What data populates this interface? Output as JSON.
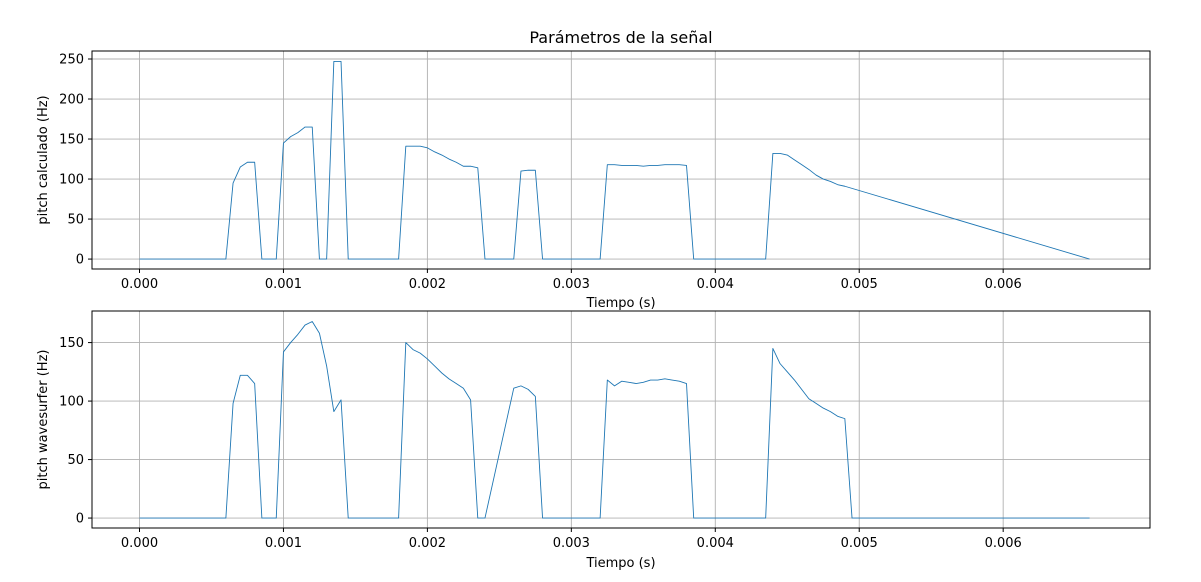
{
  "chart_data": [
    {
      "type": "line",
      "title": "Parámetros de la señal",
      "xlabel": "Tiempo (s)",
      "ylabel": "pitch calculado (Hz)",
      "xlim": [
        -0.00033,
        0.00702
      ],
      "ylim": [
        -12.4,
        260
      ],
      "xticks": [
        0.0,
        0.001,
        0.002,
        0.003,
        0.004,
        0.005,
        0.006
      ],
      "xtick_labels": [
        "0.000",
        "0.001",
        "0.002",
        "0.003",
        "0.004",
        "0.005",
        "0.006"
      ],
      "yticks": [
        0,
        50,
        100,
        150,
        200,
        250
      ],
      "ytick_labels": [
        "0",
        "50",
        "100",
        "150",
        "200",
        "250"
      ],
      "grid": true,
      "color": "#1f77b4",
      "series": [
        {
          "x": [
            0.0,
            0.0006,
            0.00065,
            0.0007,
            0.00075,
            0.0008,
            0.00085,
            0.00095,
            0.001,
            0.00105,
            0.0011,
            0.00115,
            0.0012,
            0.00125,
            0.0013,
            0.00135,
            0.0014,
            0.00145,
            0.0018,
            0.00185,
            0.0019,
            0.00195,
            0.002,
            0.00205,
            0.0021,
            0.00215,
            0.0022,
            0.00225,
            0.0023,
            0.00235,
            0.0024,
            0.00255,
            0.0026,
            0.00265,
            0.0027,
            0.00275,
            0.0028,
            0.00315,
            0.0032,
            0.00325,
            0.0033,
            0.00335,
            0.0034,
            0.00345,
            0.0035,
            0.00355,
            0.0036,
            0.00365,
            0.0037,
            0.00375,
            0.0038,
            0.00385,
            0.00435,
            0.0044,
            0.00445,
            0.0045,
            0.00455,
            0.0046,
            0.00465,
            0.0047,
            0.00475,
            0.0048,
            0.00485,
            0.0049,
            0.0066
          ],
          "y": [
            0,
            0,
            95,
            115,
            121,
            121,
            0,
            0,
            145,
            153,
            158,
            165,
            165,
            0,
            0,
            247,
            247,
            0,
            0,
            141,
            141,
            141,
            139,
            134,
            130,
            125,
            121,
            116,
            116,
            114,
            0,
            0,
            0,
            110,
            111,
            111,
            0,
            0,
            0,
            118,
            118,
            117,
            117,
            117,
            116,
            117,
            117,
            118,
            118,
            118,
            117,
            0,
            0,
            132,
            132,
            130,
            124,
            118,
            112,
            105,
            100,
            97,
            93,
            91,
            0
          ]
        }
      ]
    },
    {
      "type": "line",
      "title": "",
      "xlabel": "Tiempo (s)",
      "ylabel": "pitch wavesurfer (Hz)",
      "xlim": [
        -0.00033,
        0.00702
      ],
      "ylim": [
        -8.5,
        177
      ],
      "xticks": [
        0.0,
        0.001,
        0.002,
        0.003,
        0.004,
        0.005,
        0.006
      ],
      "xtick_labels": [
        "0.000",
        "0.001",
        "0.002",
        "0.003",
        "0.004",
        "0.005",
        "0.006"
      ],
      "yticks": [
        0,
        50,
        100,
        150
      ],
      "ytick_labels": [
        "0",
        "50",
        "100",
        "150"
      ],
      "grid": true,
      "color": "#1f77b4",
      "series": [
        {
          "x": [
            0.0,
            0.0006,
            0.00065,
            0.0007,
            0.00075,
            0.0008,
            0.00085,
            0.00095,
            0.001,
            0.00105,
            0.0011,
            0.00115,
            0.0012,
            0.00125,
            0.0013,
            0.00135,
            0.0014,
            0.00145,
            0.0018,
            0.00185,
            0.0019,
            0.00195,
            0.002,
            0.00205,
            0.0021,
            0.00215,
            0.0022,
            0.00225,
            0.0023,
            0.00235,
            0.0024,
            0.0026,
            0.00265,
            0.0027,
            0.00275,
            0.0028,
            0.00285,
            0.0032,
            0.00325,
            0.0033,
            0.00335,
            0.0034,
            0.00345,
            0.0035,
            0.00355,
            0.0036,
            0.00365,
            0.0037,
            0.00375,
            0.0038,
            0.00385,
            0.00435,
            0.0044,
            0.00445,
            0.0045,
            0.00455,
            0.0046,
            0.00465,
            0.0047,
            0.00475,
            0.0048,
            0.00485,
            0.0049,
            0.00495,
            0.0066
          ],
          "y": [
            0,
            0,
            98,
            122,
            122,
            115,
            0,
            0,
            142,
            150,
            157,
            165,
            168,
            158,
            130,
            91,
            101,
            0,
            0,
            150,
            144,
            141,
            136,
            130,
            124,
            119,
            115,
            111,
            101,
            0,
            0,
            111,
            113,
            110,
            104,
            0,
            0,
            0,
            118,
            113,
            117,
            116,
            115,
            116,
            118,
            118,
            119,
            118,
            117,
            115,
            0,
            0,
            145,
            132,
            125,
            118,
            110,
            102,
            98,
            94,
            91,
            87,
            85,
            0,
            0
          ]
        }
      ]
    }
  ]
}
